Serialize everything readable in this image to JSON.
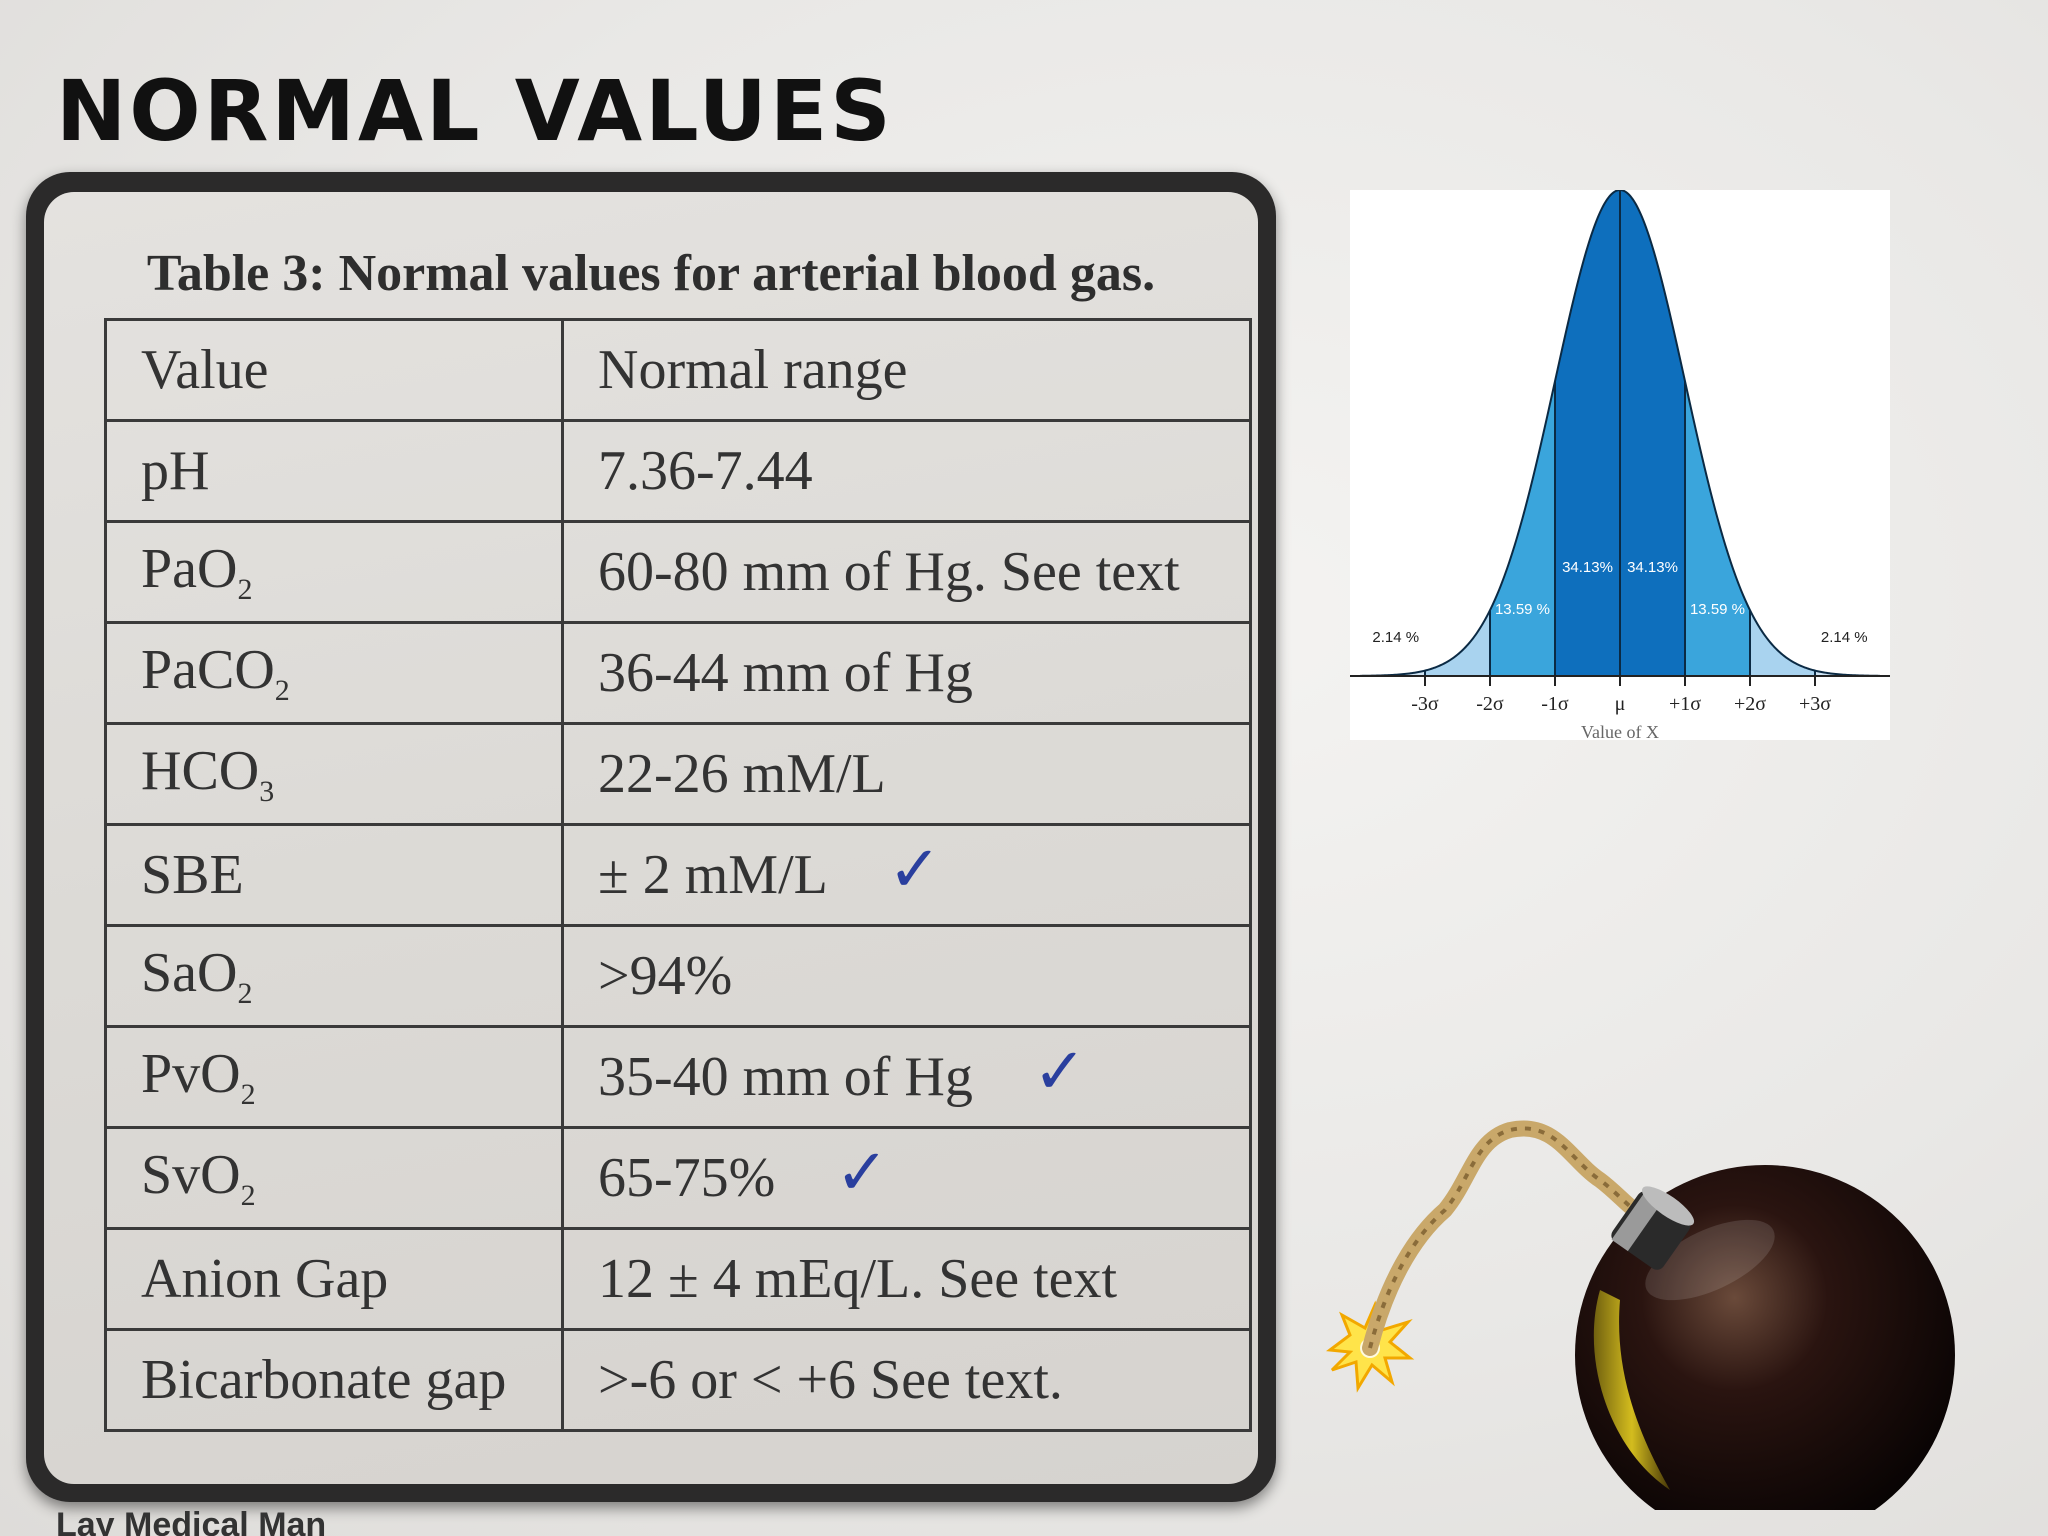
{
  "slide": {
    "title": "NORMAL VALUES",
    "footer": "Lay Medical Man"
  },
  "table": {
    "caption": "Table 3: Normal values for arterial blood gas.",
    "header": {
      "value": "Value",
      "range": "Normal range"
    },
    "rows": [
      {
        "name": "pH",
        "sub": "",
        "range": "7.36-7.44",
        "checked": false
      },
      {
        "name": "PaO",
        "sub": "2",
        "range": "60-80 mm of Hg.  See text",
        "checked": false
      },
      {
        "name": "PaCO",
        "sub": "2",
        "range": "36-44 mm of Hg",
        "checked": false
      },
      {
        "name": "HCO",
        "sub": "3",
        "range": "22-26 mM/L",
        "checked": false
      },
      {
        "name": "SBE",
        "sub": "",
        "range": "± 2 mM/L",
        "checked": true
      },
      {
        "name": "SaO",
        "sub": "2",
        "range": ">94%",
        "checked": false
      },
      {
        "name": "PvO",
        "sub": "2",
        "range": "35-40 mm of Hg",
        "checked": true
      },
      {
        "name": "SvO",
        "sub": "2",
        "range": "65-75%",
        "checked": true
      },
      {
        "name": "Anion Gap",
        "sub": "",
        "range": "12 ± 4 mEq/L.  See text",
        "checked": false
      },
      {
        "name": "Bicarbonate gap",
        "sub": "",
        "range": ">-6 or < +6  See text.",
        "checked": false
      }
    ]
  },
  "chart_data": {
    "type": "area",
    "xlabel": "Value of X",
    "x_ticks": [
      "-3σ",
      "-2σ",
      "-1σ",
      "μ",
      "+1σ",
      "+2σ",
      "+3σ"
    ],
    "x_tick_values": [
      -3,
      -2,
      -1,
      0,
      1,
      2,
      3
    ],
    "bands": [
      {
        "from": -4,
        "to": -3,
        "percent_label": "",
        "color": "#cfe4f4"
      },
      {
        "from": -3,
        "to": -2,
        "percent_label": "2.14 %",
        "color": "#a9d3ef"
      },
      {
        "from": -2,
        "to": -1,
        "percent_label": "13.59 %",
        "color": "#3aa5dc"
      },
      {
        "from": -1,
        "to": 0,
        "percent_label": "34.13%",
        "color": "#0e6fbd"
      },
      {
        "from": 0,
        "to": 1,
        "percent_label": "34.13%",
        "color": "#0e6fbd"
      },
      {
        "from": 1,
        "to": 2,
        "percent_label": "13.59 %",
        "color": "#3aa5dc"
      },
      {
        "from": 2,
        "to": 3,
        "percent_label": "2.14 %",
        "color": "#a9d3ef"
      },
      {
        "from": 3,
        "to": 4,
        "percent_label": "",
        "color": "#cfe4f4"
      }
    ],
    "xlim": [
      -4,
      4
    ]
  },
  "colors": {
    "ink_check": "#2a3f9e",
    "frame": "#2b2a2a",
    "paper": "#dcdad6"
  },
  "icons": {
    "check": "checkmark-icon",
    "bomb": "bomb-icon"
  }
}
